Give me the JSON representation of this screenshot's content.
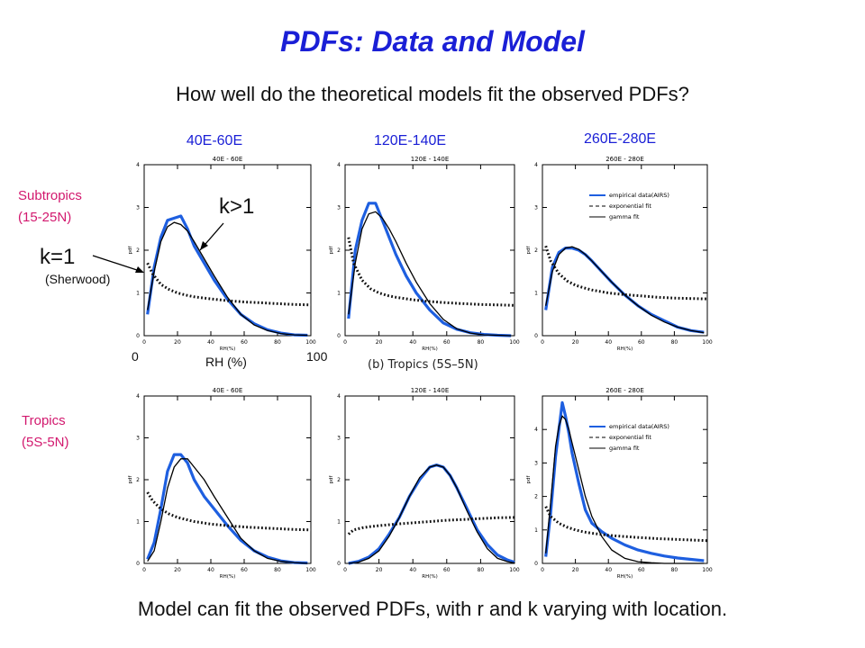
{
  "title": "PDFs: Data and Model",
  "subtitle": "How well do the theoretical models fit the observed PDFs?",
  "region_headers": [
    "40E-60E",
    "120E-140E",
    "260E-280E"
  ],
  "row_labels": {
    "subtropics": [
      "Subtropics",
      "(15-25N)"
    ],
    "tropics": [
      "Tropics",
      "(5S-5N)"
    ]
  },
  "annotations": {
    "k_gt_1": "k>1",
    "k_eq_1": "k=1",
    "sherwood": "(Sherwood)",
    "x_min": "0",
    "x_max": "100",
    "x_label": "RH (%)"
  },
  "middle_caption": "(b)  Tropics  (5S–5N)",
  "conclusion": "Model can fit the observed PDFs, with r and k varying with location.",
  "colors": {
    "accent": "#1a1fd6",
    "row_label": "#d2186e",
    "empirical": "#1e5fe0",
    "model": "#000000"
  },
  "chart_data": [
    {
      "type": "line",
      "title": "40E - 60E",
      "xlabel": "RH(%)",
      "ylabel": "pdf",
      "xlim": [
        0,
        100
      ],
      "ylim": [
        0,
        4
      ],
      "xticks": [
        0,
        20,
        40,
        60,
        80,
        100
      ],
      "yticks": [
        0,
        1,
        2,
        3,
        4
      ],
      "legend": [],
      "series": [
        {
          "style": "empirical",
          "x": [
            2,
            6,
            10,
            14,
            18,
            22,
            26,
            30,
            36,
            42,
            50,
            58,
            66,
            74,
            82,
            90,
            98
          ],
          "y": [
            0.5,
            1.6,
            2.3,
            2.7,
            2.75,
            2.8,
            2.5,
            2.1,
            1.7,
            1.3,
            0.85,
            0.5,
            0.28,
            0.14,
            0.06,
            0.02,
            0.01
          ]
        },
        {
          "style": "exponential",
          "x": [
            2,
            5,
            10,
            15,
            20,
            25,
            30,
            40,
            50,
            60,
            70,
            80,
            90,
            100
          ],
          "y": [
            1.7,
            1.45,
            1.2,
            1.08,
            1.0,
            0.95,
            0.91,
            0.86,
            0.82,
            0.79,
            0.77,
            0.75,
            0.73,
            0.72
          ]
        },
        {
          "style": "gamma",
          "x": [
            2,
            6,
            10,
            14,
            18,
            22,
            26,
            30,
            36,
            42,
            50,
            58,
            66,
            74,
            82,
            90,
            98
          ],
          "y": [
            0.6,
            1.5,
            2.2,
            2.55,
            2.65,
            2.6,
            2.45,
            2.2,
            1.8,
            1.4,
            0.9,
            0.5,
            0.25,
            0.12,
            0.05,
            0.02,
            0.01
          ]
        }
      ]
    },
    {
      "type": "line",
      "title": "120E - 140E",
      "xlabel": "RH(%)",
      "ylabel": "pdf",
      "xlim": [
        0,
        100
      ],
      "ylim": [
        0,
        4
      ],
      "xticks": [
        0,
        20,
        40,
        60,
        80,
        100
      ],
      "yticks": [
        0,
        1,
        2,
        3,
        4
      ],
      "legend": [],
      "series": [
        {
          "style": "empirical",
          "x": [
            2,
            6,
            10,
            14,
            18,
            22,
            26,
            30,
            36,
            42,
            50,
            58,
            66,
            74,
            82,
            90,
            98
          ],
          "y": [
            0.4,
            2.0,
            2.7,
            3.1,
            3.1,
            2.7,
            2.3,
            1.9,
            1.4,
            1.0,
            0.6,
            0.3,
            0.15,
            0.07,
            0.03,
            0.01,
            0.0
          ]
        },
        {
          "style": "exponential",
          "x": [
            2,
            5,
            10,
            15,
            20,
            25,
            30,
            40,
            50,
            60,
            70,
            80,
            90,
            100
          ],
          "y": [
            2.3,
            1.7,
            1.3,
            1.1,
            1.0,
            0.94,
            0.9,
            0.84,
            0.8,
            0.77,
            0.75,
            0.73,
            0.72,
            0.71
          ]
        },
        {
          "style": "gamma",
          "x": [
            2,
            6,
            10,
            14,
            18,
            22,
            26,
            30,
            36,
            42,
            50,
            58,
            66,
            74,
            82,
            90,
            98
          ],
          "y": [
            0.5,
            1.7,
            2.5,
            2.85,
            2.9,
            2.75,
            2.5,
            2.2,
            1.7,
            1.25,
            0.75,
            0.38,
            0.16,
            0.06,
            0.02,
            0.01,
            0.0
          ]
        }
      ]
    },
    {
      "type": "line",
      "title": "260E - 280E",
      "xlabel": "RH(%)",
      "ylabel": "pdf",
      "xlim": [
        0,
        100
      ],
      "ylim": [
        0,
        4
      ],
      "xticks": [
        0,
        20,
        40,
        60,
        80,
        100
      ],
      "yticks": [
        0,
        1,
        2,
        3,
        4
      ],
      "legend": [
        "empirical data(AIRS)",
        "exponential fit",
        "gamma fit"
      ],
      "series": [
        {
          "style": "empirical",
          "x": [
            2,
            6,
            10,
            14,
            18,
            22,
            26,
            30,
            36,
            42,
            50,
            58,
            66,
            74,
            82,
            90,
            98
          ],
          "y": [
            0.6,
            1.6,
            1.95,
            2.05,
            2.05,
            2.0,
            1.9,
            1.75,
            1.5,
            1.25,
            0.95,
            0.7,
            0.5,
            0.35,
            0.2,
            0.12,
            0.08
          ]
        },
        {
          "style": "exponential",
          "x": [
            2,
            5,
            10,
            15,
            20,
            25,
            30,
            40,
            50,
            60,
            70,
            80,
            90,
            100
          ],
          "y": [
            2.1,
            1.75,
            1.45,
            1.28,
            1.18,
            1.12,
            1.07,
            1.0,
            0.96,
            0.93,
            0.9,
            0.88,
            0.87,
            0.86
          ]
        },
        {
          "style": "gamma",
          "x": [
            2,
            6,
            10,
            14,
            18,
            22,
            26,
            30,
            36,
            42,
            50,
            58,
            66,
            74,
            82,
            90,
            98
          ],
          "y": [
            0.7,
            1.5,
            1.9,
            2.05,
            2.08,
            2.02,
            1.9,
            1.75,
            1.5,
            1.25,
            0.95,
            0.7,
            0.48,
            0.32,
            0.2,
            0.12,
            0.07
          ]
        }
      ]
    },
    {
      "type": "line",
      "title": "40E - 60E",
      "xlabel": "RH(%)",
      "ylabel": "pdf",
      "xlim": [
        0,
        100
      ],
      "ylim": [
        0,
        4
      ],
      "xticks": [
        0,
        20,
        40,
        60,
        80,
        100
      ],
      "yticks": [
        0,
        1,
        2,
        3,
        4
      ],
      "legend": [],
      "series": [
        {
          "style": "empirical",
          "x": [
            2,
            6,
            10,
            14,
            18,
            22,
            26,
            30,
            36,
            42,
            50,
            58,
            66,
            74,
            82,
            90,
            98
          ],
          "y": [
            0.1,
            0.5,
            1.3,
            2.2,
            2.6,
            2.6,
            2.4,
            2.0,
            1.6,
            1.3,
            0.9,
            0.55,
            0.3,
            0.15,
            0.06,
            0.02,
            0.01
          ]
        },
        {
          "style": "exponential",
          "x": [
            2,
            5,
            10,
            15,
            20,
            25,
            30,
            40,
            50,
            60,
            70,
            80,
            90,
            100
          ],
          "y": [
            1.7,
            1.5,
            1.3,
            1.18,
            1.1,
            1.05,
            1.0,
            0.94,
            0.9,
            0.87,
            0.85,
            0.83,
            0.81,
            0.8
          ]
        },
        {
          "style": "gamma",
          "x": [
            2,
            6,
            10,
            14,
            18,
            22,
            26,
            30,
            36,
            42,
            50,
            58,
            66,
            74,
            82,
            90,
            98
          ],
          "y": [
            0.05,
            0.3,
            1.0,
            1.8,
            2.3,
            2.5,
            2.5,
            2.3,
            2.0,
            1.6,
            1.1,
            0.6,
            0.3,
            0.12,
            0.05,
            0.02,
            0.0
          ]
        }
      ]
    },
    {
      "type": "line",
      "title": "120E - 140E",
      "xlabel": "RH(%)",
      "ylabel": "pdf",
      "xlim": [
        0,
        100
      ],
      "ylim": [
        0,
        4
      ],
      "xticks": [
        0,
        20,
        40,
        60,
        80,
        100
      ],
      "yticks": [
        0,
        1,
        2,
        3,
        4
      ],
      "legend": [],
      "series": [
        {
          "style": "empirical",
          "x": [
            2,
            8,
            14,
            20,
            26,
            32,
            38,
            44,
            50,
            54,
            58,
            62,
            66,
            72,
            78,
            84,
            90,
            96,
            100
          ],
          "y": [
            0.0,
            0.05,
            0.15,
            0.35,
            0.7,
            1.1,
            1.6,
            2.0,
            2.3,
            2.35,
            2.3,
            2.1,
            1.8,
            1.3,
            0.8,
            0.45,
            0.2,
            0.08,
            0.03
          ]
        },
        {
          "style": "exponential",
          "x": [
            2,
            5,
            10,
            15,
            20,
            25,
            30,
            40,
            50,
            60,
            70,
            80,
            90,
            100
          ],
          "y": [
            0.7,
            0.8,
            0.85,
            0.88,
            0.9,
            0.92,
            0.94,
            0.97,
            1.0,
            1.03,
            1.05,
            1.07,
            1.09,
            1.1
          ]
        },
        {
          "style": "gamma",
          "x": [
            2,
            8,
            14,
            20,
            26,
            32,
            38,
            44,
            50,
            54,
            58,
            62,
            66,
            72,
            78,
            84,
            90,
            96,
            100
          ],
          "y": [
            0.0,
            0.03,
            0.12,
            0.3,
            0.65,
            1.1,
            1.6,
            2.05,
            2.3,
            2.35,
            2.3,
            2.1,
            1.8,
            1.25,
            0.75,
            0.35,
            0.12,
            0.04,
            0.01
          ]
        }
      ]
    },
    {
      "type": "line",
      "title": "260E - 280E",
      "xlabel": "RH(%)",
      "ylabel": "pdf",
      "xlim": [
        0,
        100
      ],
      "ylim": [
        0,
        5
      ],
      "xticks": [
        0,
        20,
        40,
        60,
        80,
        100
      ],
      "yticks": [
        0,
        1,
        2,
        3,
        4
      ],
      "legend": [
        "empirical data(AIRS)",
        "exponential fit",
        "gamma fit"
      ],
      "series": [
        {
          "style": "empirical",
          "x": [
            2,
            5,
            8,
            10,
            12,
            14,
            16,
            18,
            22,
            26,
            30,
            36,
            42,
            50,
            58,
            66,
            74,
            82,
            90,
            98
          ],
          "y": [
            0.2,
            1.5,
            3.2,
            4.0,
            4.8,
            4.4,
            3.9,
            3.3,
            2.4,
            1.6,
            1.2,
            0.95,
            0.75,
            0.55,
            0.4,
            0.3,
            0.22,
            0.16,
            0.12,
            0.08
          ]
        },
        {
          "style": "exponential",
          "x": [
            2,
            5,
            10,
            15,
            20,
            25,
            30,
            40,
            50,
            60,
            70,
            80,
            90,
            100
          ],
          "y": [
            1.7,
            1.4,
            1.2,
            1.08,
            1.0,
            0.94,
            0.9,
            0.84,
            0.8,
            0.77,
            0.74,
            0.72,
            0.7,
            0.68
          ]
        },
        {
          "style": "gamma",
          "x": [
            2,
            5,
            8,
            10,
            12,
            14,
            16,
            18,
            22,
            26,
            30,
            36,
            42,
            50,
            58,
            66,
            74,
            82,
            90,
            98
          ],
          "y": [
            0.3,
            1.8,
            3.5,
            4.1,
            4.4,
            4.3,
            4.0,
            3.6,
            2.8,
            2.0,
            1.4,
            0.8,
            0.4,
            0.15,
            0.05,
            0.02,
            0.0,
            0.0,
            0.0,
            0.0
          ]
        }
      ]
    }
  ]
}
